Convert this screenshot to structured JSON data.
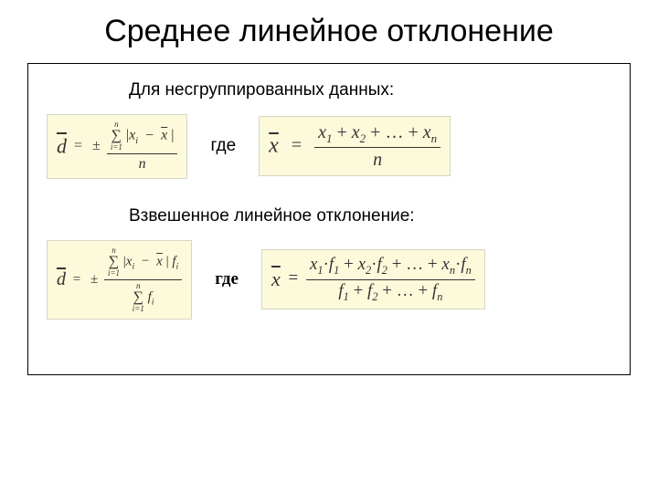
{
  "title": "Среднее линейное отклонение",
  "section1": {
    "heading": "Для несгруппированных данных:",
    "where": "где",
    "formula_d": {
      "lhs": "d",
      "lhs_bar": true,
      "pm": "±",
      "sum_top": "n",
      "sum_bottom": "i=1",
      "abs_open": "|",
      "xi": "x",
      "xi_sub": "i",
      "minus": "−",
      "xbar": "x",
      "abs_close": "|",
      "den": "n",
      "bg": "#fcfada",
      "border": "#d6d6c2"
    },
    "formula_xbar": {
      "lhs": "x",
      "lhs_bar": true,
      "eq": "=",
      "num_terms": [
        "x",
        "1",
        " + ",
        "x",
        "2",
        " + … + ",
        "x",
        "n"
      ],
      "den": "n",
      "bg": "#fcfada",
      "border": "#d6d6c2"
    }
  },
  "section2": {
    "heading": "Взвешенное линейное отклонение:",
    "where": "где",
    "formula_d": {
      "lhs": "d",
      "lhs_bar": true,
      "pm": "±",
      "sum_top": "n",
      "sum_bottom": "i=1",
      "abs_open": "|",
      "xi": "x",
      "xi_sub": "i",
      "minus": "−",
      "xbar": "x",
      "abs_close": "|",
      "fi": "f",
      "fi_sub": "i",
      "den_sum_top": "n",
      "den_sum_bottom": "i=1",
      "den_fi": "f",
      "den_fi_sub": "i",
      "bg": "#fcfada",
      "border": "#d6d6c2"
    },
    "formula_xbar": {
      "lhs": "x",
      "lhs_bar": true,
      "eq": "=",
      "num": "x₁·f₁ + x₂·f₂ + … + xₙ·fₙ",
      "den": "f₁ + f₂ + … + fₙ",
      "num_parts": [
        "x",
        "1",
        "·",
        "f",
        "1",
        " + ",
        "x",
        "2",
        "·",
        "f",
        "2",
        " + … + ",
        "x",
        "n",
        "·",
        "f",
        "n"
      ],
      "den_parts": [
        "f",
        "1",
        " + ",
        "f",
        "2",
        " + … + ",
        "f",
        "n"
      ],
      "bg": "#fcfada",
      "border": "#d6d6c2"
    }
  },
  "style": {
    "formula_bg": "#fcfada",
    "formula_border": "#d6d6c2",
    "text_color": "#000000",
    "title_fontsize": 34,
    "subhead_fontsize": 19
  }
}
